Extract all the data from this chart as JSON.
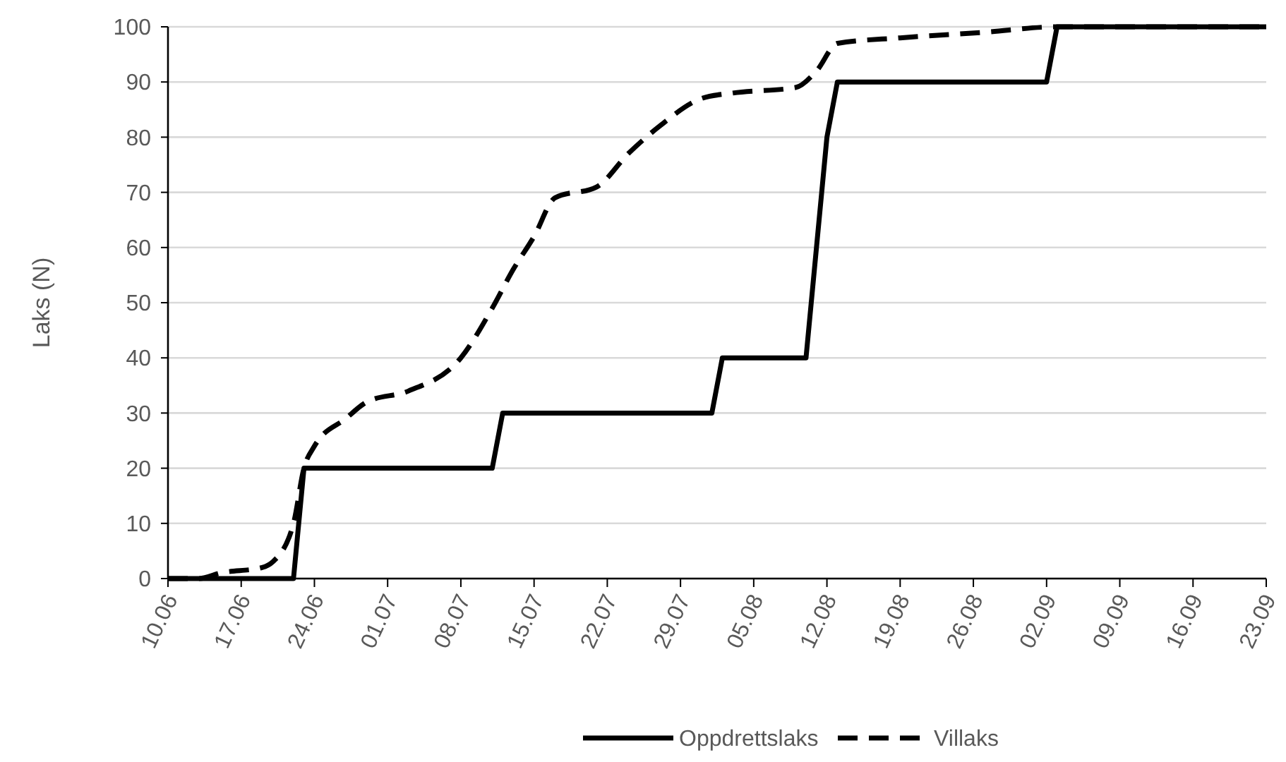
{
  "chart_data": {
    "type": "line",
    "ylabel": "Laks (N)",
    "ylim": [
      0,
      100
    ],
    "yticks": [
      0,
      10,
      20,
      30,
      40,
      50,
      60,
      70,
      80,
      90,
      100
    ],
    "xlim": [
      "--06-10",
      "--09-23"
    ],
    "xticks": [
      {
        "value": "--06-10",
        "label": "10.06"
      },
      {
        "value": "--06-17",
        "label": "17.06"
      },
      {
        "value": "--06-24",
        "label": "24.06"
      },
      {
        "value": "--07-01",
        "label": "01.07"
      },
      {
        "value": "--07-08",
        "label": "08.07"
      },
      {
        "value": "--07-15",
        "label": "15.07"
      },
      {
        "value": "--07-22",
        "label": "22.07"
      },
      {
        "value": "--07-29",
        "label": "29.07"
      },
      {
        "value": "--08-05",
        "label": "05.08"
      },
      {
        "value": "--08-12",
        "label": "12.08"
      },
      {
        "value": "--08-19",
        "label": "19.08"
      },
      {
        "value": "--08-26",
        "label": "26.08"
      },
      {
        "value": "--09-02",
        "label": "02.09"
      },
      {
        "value": "--09-09",
        "label": "09.09"
      },
      {
        "value": "--09-16",
        "label": "16.09"
      },
      {
        "value": "--09-23",
        "label": "23.09"
      }
    ],
    "grid": "y",
    "legend": "bottom",
    "marker": "none",
    "series": [
      {
        "name": "Oppdrettslaks",
        "color": "#000000",
        "line_style": "solid",
        "x": [
          "--06-10",
          "--06-22",
          "--06-23",
          "--07-11",
          "--07-12",
          "--08-01",
          "--08-02",
          "--08-10",
          "--08-12",
          "--08-13",
          "--09-02",
          "--09-03",
          "--09-23"
        ],
        "values": [
          0,
          0,
          20,
          20,
          30,
          30,
          40,
          40,
          80,
          90,
          90,
          100,
          100
        ]
      },
      {
        "name": "Villaks",
        "color": "#000000",
        "line_style": "dashed",
        "x": [
          "--06-10",
          "--06-13",
          "--06-15",
          "--06-19",
          "--06-20",
          "--06-22",
          "--06-23",
          "--06-24",
          "--06-27",
          "--06-29",
          "--07-03",
          "--07-08",
          "--07-11",
          "--07-13",
          "--07-15",
          "--07-17",
          "--07-21",
          "--07-24",
          "--07-27",
          "--07-31",
          "--08-03",
          "--08-09",
          "--08-11",
          "--08-13",
          "--08-19",
          "--08-27",
          "--09-03",
          "--09-23"
        ],
        "values": [
          0,
          0,
          1,
          2,
          3,
          10,
          20,
          24,
          29,
          32,
          34,
          40,
          49,
          56,
          62,
          69,
          71,
          77,
          82,
          87,
          88,
          89,
          92,
          97,
          98,
          99,
          100,
          100
        ]
      }
    ]
  }
}
